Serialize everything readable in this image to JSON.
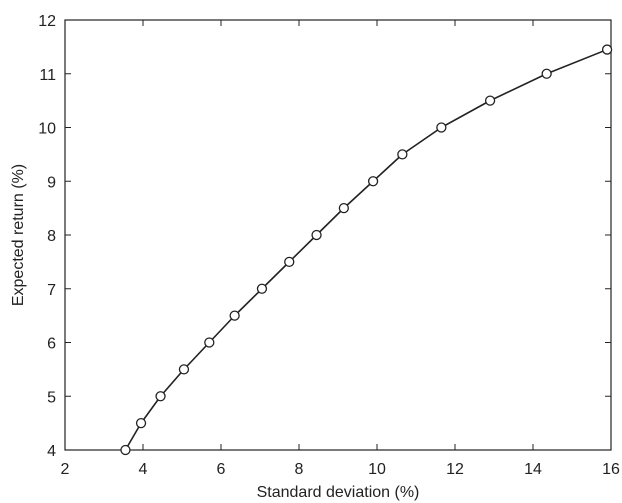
{
  "chart_data": {
    "type": "line",
    "title": "",
    "xlabel": "Standard deviation (%)",
    "ylabel": "Expected return (%)",
    "xlim": [
      2,
      16
    ],
    "ylim": [
      4,
      12
    ],
    "xticks": [
      2,
      4,
      6,
      8,
      10,
      12,
      14,
      16
    ],
    "yticks": [
      4,
      5,
      6,
      7,
      8,
      9,
      10,
      11,
      12
    ],
    "grid": false,
    "legend": "none",
    "series": [
      {
        "marker": "circle",
        "color": "#222222",
        "points": [
          {
            "x": 3.55,
            "y": 4.0
          },
          {
            "x": 3.95,
            "y": 4.5
          },
          {
            "x": 4.45,
            "y": 5.0
          },
          {
            "x": 5.05,
            "y": 5.5
          },
          {
            "x": 5.7,
            "y": 6.0
          },
          {
            "x": 6.35,
            "y": 6.5
          },
          {
            "x": 7.05,
            "y": 7.0
          },
          {
            "x": 7.75,
            "y": 7.5
          },
          {
            "x": 8.45,
            "y": 8.0
          },
          {
            "x": 9.15,
            "y": 8.5
          },
          {
            "x": 9.9,
            "y": 9.0
          },
          {
            "x": 10.65,
            "y": 9.5
          },
          {
            "x": 11.65,
            "y": 10.0
          },
          {
            "x": 12.9,
            "y": 10.5
          },
          {
            "x": 14.35,
            "y": 11.0
          },
          {
            "x": 15.9,
            "y": 11.45
          }
        ]
      }
    ]
  }
}
